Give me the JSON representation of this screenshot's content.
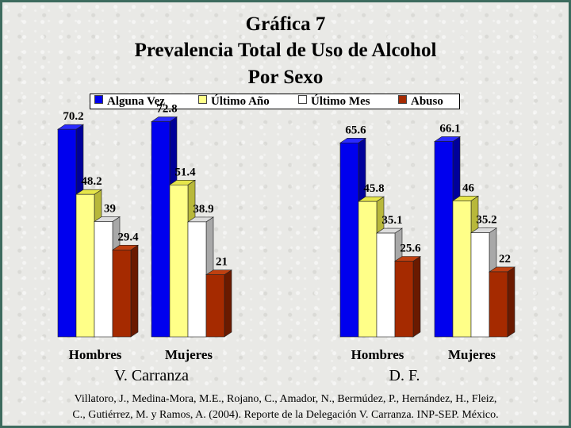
{
  "title_lines": [
    "Gráfica 7",
    "Prevalencia Total de Uso de Alcohol",
    "Por Sexo"
  ],
  "legend": [
    "Alguna Vez",
    "Último Año",
    "Último Mes",
    "Abuso"
  ],
  "colors": [
    "#0000ee",
    "#ffff88",
    "#ffffff",
    "#a52a00"
  ],
  "source_lines": [
    "Villatoro, J., Medina-Mora, M.E., Rojano, C., Amador, N., Bermúdez, P., Hernández, H., Fleiz,",
    "C., Gutiérrez, M. y Ramos, A. (2004). Reporte de la Delegación V. Carranza. INP-SEP. México."
  ],
  "chart_data": {
    "type": "bar",
    "title": "Gráfica 7 Prevalencia Total de Uso de Alcohol Por Sexo",
    "series_names": [
      "Alguna Vez",
      "Último Año",
      "Último Mes",
      "Abuso"
    ],
    "ylim": [
      0,
      100
    ],
    "grid": false,
    "legend_position": "top",
    "groups": [
      {
        "name": "V. Carranza",
        "categories": [
          {
            "label": "Hombres",
            "values": [
              70.2,
              48.2,
              39,
              29.4
            ],
            "labels": [
              "70.2",
              "48.2",
              "39",
              "29.4"
            ]
          },
          {
            "label": "Mujeres",
            "values": [
              72.8,
              51.4,
              38.9,
              21
            ],
            "labels": [
              "72.8",
              "51.4",
              "38.9",
              "21"
            ]
          }
        ]
      },
      {
        "name": "D. F.",
        "categories": [
          {
            "label": "Hombres",
            "values": [
              65.6,
              45.8,
              35.1,
              25.6
            ],
            "labels": [
              "65.6",
              "45.8",
              "35.1",
              "25.6"
            ]
          },
          {
            "label": "Mujeres",
            "values": [
              66.1,
              46,
              35.2,
              22
            ],
            "labels": [
              "66.1",
              "46",
              "35.2",
              "22"
            ]
          }
        ]
      }
    ]
  }
}
